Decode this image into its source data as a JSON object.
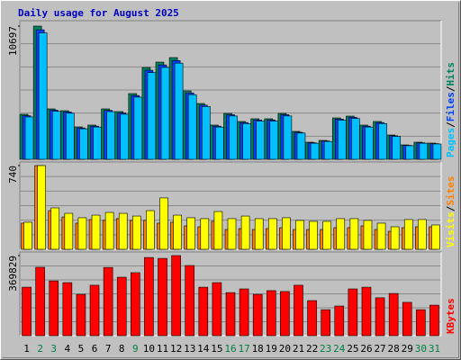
{
  "chart_data": {
    "type": "bar",
    "title": "Daily usage for August 2025",
    "categories": [
      "1",
      "2",
      "3",
      "4",
      "5",
      "6",
      "7",
      "8",
      "9",
      "10",
      "11",
      "12",
      "13",
      "14",
      "15",
      "16",
      "17",
      "18",
      "19",
      "20",
      "21",
      "22",
      "23",
      "24",
      "25",
      "26",
      "27",
      "28",
      "29",
      "30",
      "31"
    ],
    "weekend": [
      1,
      2,
      8,
      15,
      16,
      22,
      23,
      29,
      30
    ],
    "weekend_color": "#008040",
    "legend_separator": "/",
    "panels": [
      {
        "ylim": [
          0,
          10697
        ],
        "yticks": [
          10697
        ],
        "series": [
          {
            "name": "Hits",
            "color": "#00805c",
            "values": [
              3614,
              10697,
              4048,
              3903,
              2602,
              2747,
              4048,
              3831,
              5276,
              7372,
              7806,
              8167,
              5493,
              4481,
              2747,
              3686,
              3036,
              3253,
              3253,
              3686,
              2241,
              1373,
              1518,
              3325,
              3469,
              2747,
              3036,
              1951,
              1156,
              1373,
              1301
            ]
          },
          {
            "name": "Files",
            "color": "#0040ff",
            "values": [
              3500,
              10400,
              3950,
              3800,
              2520,
              2660,
              3930,
              3720,
              5120,
              7150,
              7580,
              7930,
              5330,
              4350,
              2660,
              3580,
              2950,
              3160,
              3160,
              3580,
              2170,
              1330,
              1470,
              3230,
              3370,
              2660,
              2950,
              1890,
              1120,
              1330,
              1260
            ]
          },
          {
            "name": "Pages",
            "color": "#00c0ff",
            "values": [
              3400,
              10150,
              3850,
              3700,
              2450,
              2590,
              3830,
              3620,
              4990,
              6960,
              7380,
              7720,
              5190,
              4240,
              2590,
              3480,
              2870,
              3070,
              3070,
              3480,
              2110,
              1290,
              1430,
              3140,
              3280,
              2590,
              2870,
              1840,
              1090,
              1290,
              1230
            ]
          }
        ]
      },
      {
        "ylim": [
          0,
          740
        ],
        "yticks": [
          740
        ],
        "series": [
          {
            "name": "Sites",
            "color": "#ff8000",
            "values": [
              231,
              740,
              342,
              286,
              231,
              263,
              255,
              271,
              255,
              255,
              231,
              239,
              207,
              199,
              247,
              175,
              183,
              175,
              183,
              191,
              175,
              175,
              175,
              191,
              191,
              207,
              175,
              159,
              191,
              199,
              199
            ]
          },
          {
            "name": "Visits",
            "color": "#ffff00",
            "values": [
              239,
              740,
              366,
              318,
              279,
              302,
              326,
              318,
              294,
              342,
              454,
              302,
              279,
              271,
              334,
              271,
              294,
              271,
              271,
              279,
              255,
              247,
              247,
              271,
              271,
              255,
              231,
              199,
              263,
              263,
              215
            ]
          }
        ]
      },
      {
        "ylim": [
          0,
          369829
        ],
        "yticks": [
          369829
        ],
        "series": [
          {
            "name": "KBytes",
            "color": "#ff0000",
            "values": [
              224000,
              315815,
              253000,
              245000,
              191000,
              233000,
              315000,
              270000,
              291000,
              361000,
              357000,
              369829,
              324000,
              224000,
              245000,
              199000,
              216000,
              191000,
              208000,
              204000,
              233000,
              162000,
              120000,
              137000,
              216000,
              224000,
              175000,
              195000,
              154000,
              120000,
              141000
            ]
          }
        ]
      }
    ]
  }
}
